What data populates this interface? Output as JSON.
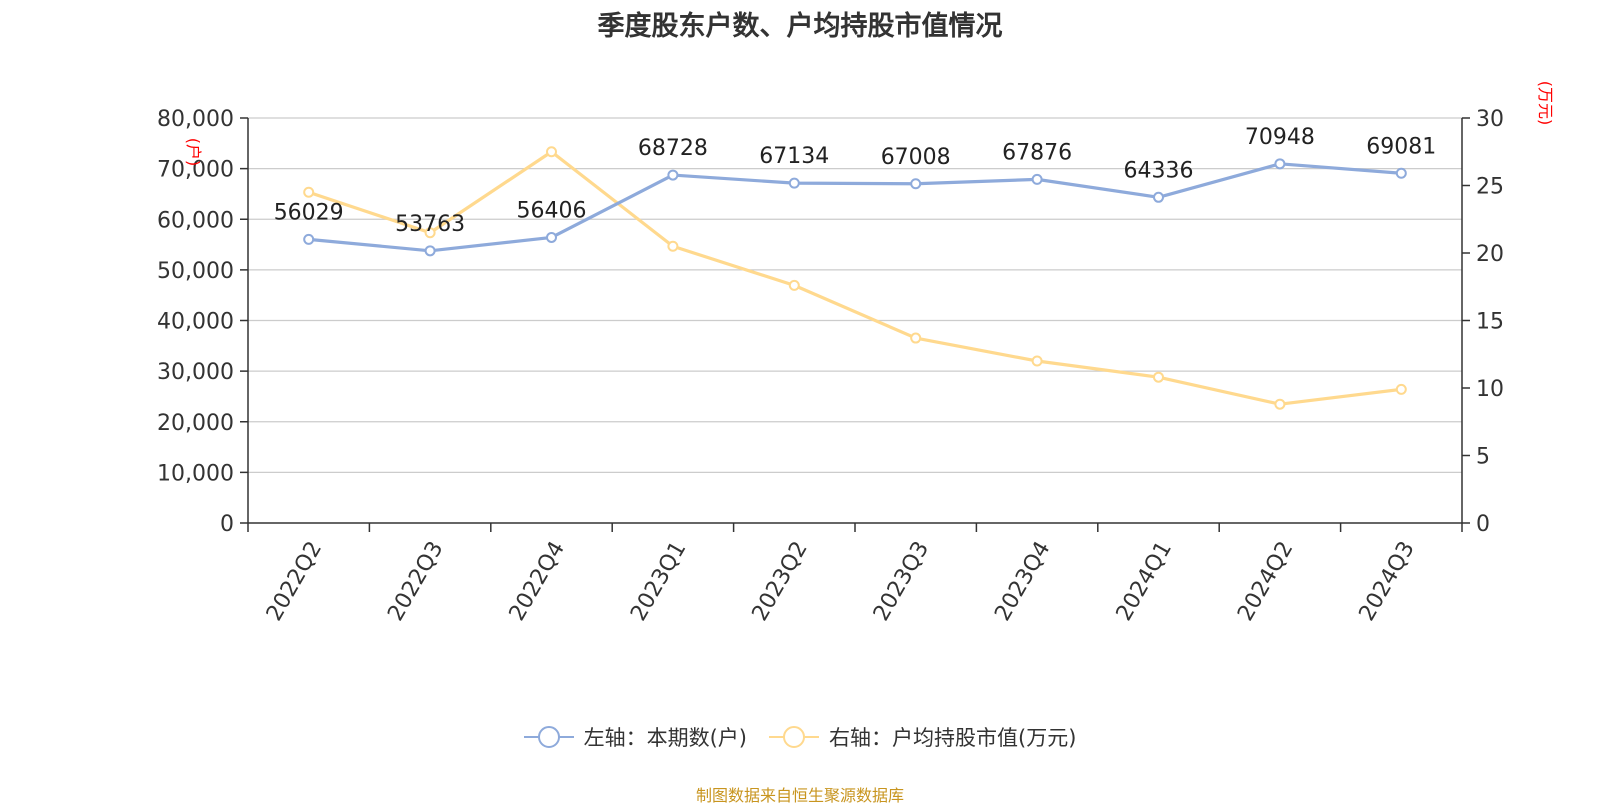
{
  "chart_data": {
    "type": "line",
    "title": "季度股东户数、户均持股市值情况",
    "categories": [
      "2022Q2",
      "2022Q3",
      "2022Q4",
      "2023Q1",
      "2023Q2",
      "2023Q3",
      "2023Q4",
      "2024Q1",
      "2024Q2",
      "2024Q3"
    ],
    "series": [
      {
        "name": "左轴：本期数(户)",
        "axis": "left",
        "color": "#8eaadb",
        "values": [
          56029,
          53763,
          56406,
          68728,
          67134,
          67008,
          67876,
          64336,
          70948,
          69081
        ],
        "show_labels": true
      },
      {
        "name": "右轴：户均持股市值(万元)",
        "axis": "right",
        "color": "#ffd98e",
        "values": [
          24.5,
          21.5,
          27.5,
          20.5,
          17.6,
          13.7,
          12.0,
          10.8,
          8.8,
          9.9
        ],
        "show_labels": false
      }
    ],
    "y_left": {
      "unit_label": "(户)",
      "ylim": [
        0,
        80000
      ],
      "ticks": [
        "0",
        "10,000",
        "20,000",
        "30,000",
        "40,000",
        "50,000",
        "60,000",
        "70,000",
        "80,000"
      ]
    },
    "y_right": {
      "unit_label": "(万元)",
      "ylim": [
        0,
        30
      ],
      "ticks": [
        "0",
        "5",
        "10",
        "15",
        "20",
        "25",
        "30"
      ]
    },
    "grid": true,
    "legend_position": "bottom-center",
    "colors": {
      "axis_unit": "#ff0000",
      "source": "#c8951f",
      "grid": "#cccccc",
      "text": "#333333"
    }
  },
  "source_note": "制图数据来自恒生聚源数据库"
}
